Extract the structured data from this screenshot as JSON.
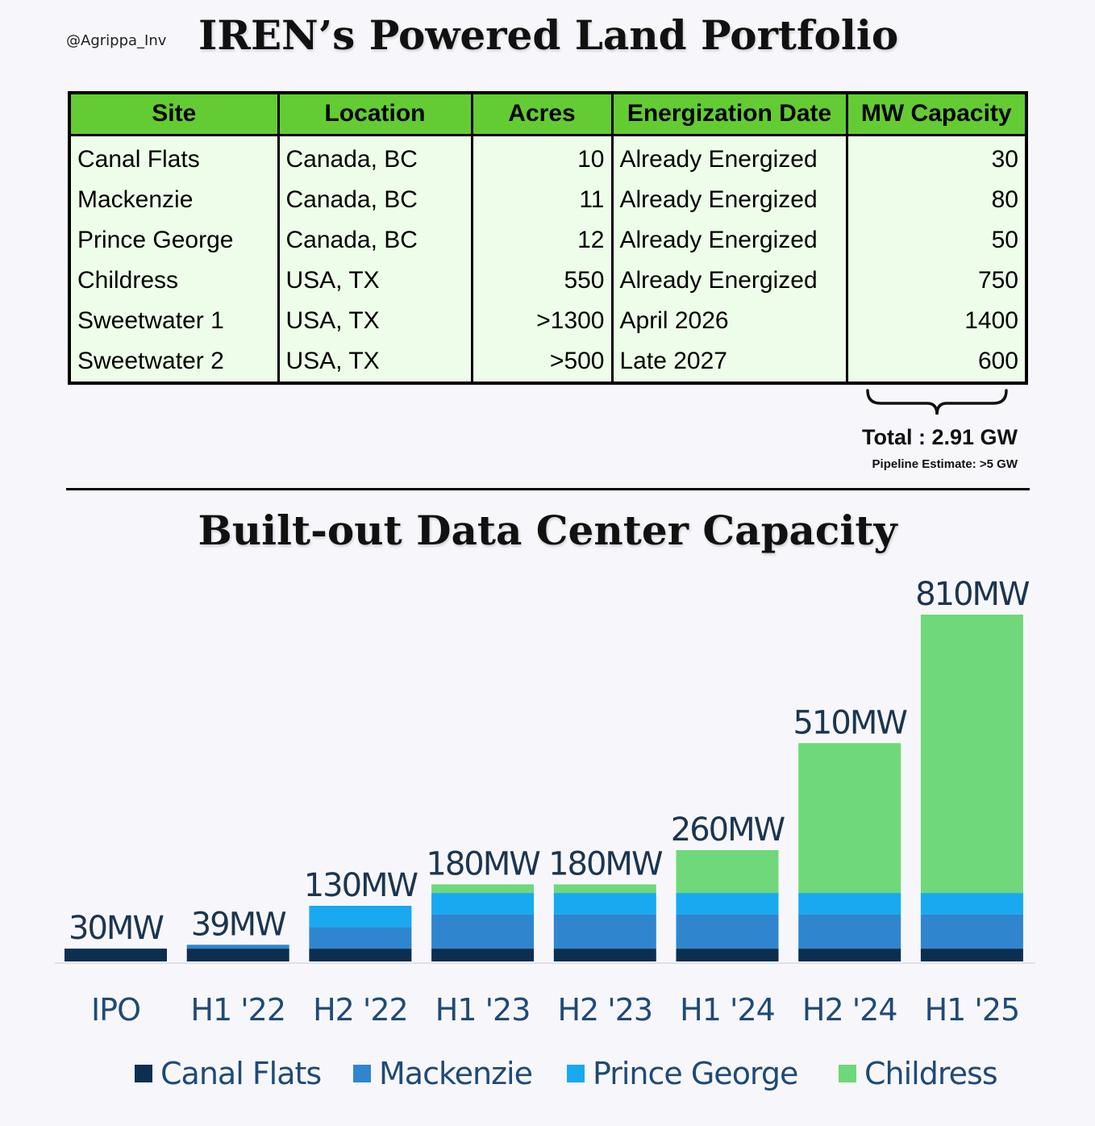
{
  "header": {
    "handle": "@Agrippa_Inv",
    "title": "IREN’s Powered Land Portfolio"
  },
  "table": {
    "columns": [
      "Site",
      "Location",
      "Acres",
      "Energization Date",
      "MW Capacity"
    ],
    "rows": [
      [
        "Canal Flats",
        "Canada, BC",
        "10",
        "Already Energized",
        "30"
      ],
      [
        "Mackenzie",
        "Canada, BC",
        "11",
        "Already Energized",
        "80"
      ],
      [
        "Prince George",
        "Canada, BC",
        "12",
        "Already Energized",
        "50"
      ],
      [
        "Childress",
        "USA, TX",
        "550",
        "Already Energized",
        "750"
      ],
      [
        "Sweetwater 1",
        "USA, TX",
        ">1300",
        "April 2026",
        "1400"
      ],
      [
        "Sweetwater 2",
        "USA, TX",
        ">500",
        "Late 2027",
        "600"
      ]
    ]
  },
  "summary": {
    "total": "Total : 2.91 GW",
    "pipeline": "Pipeline Estimate: >5 GW"
  },
  "chart_data": {
    "type": "bar",
    "stacked": true,
    "title": "Built-out Data Center Capacity",
    "categories": [
      "IPO",
      "H1 '22",
      "H2 '22",
      "H1 '23",
      "H2 '23",
      "H1 '24",
      "H2 '24",
      "H1 '25"
    ],
    "totals": [
      30,
      39,
      130,
      180,
      180,
      260,
      510,
      810
    ],
    "total_labels": [
      "30MW",
      "39MW",
      "130MW",
      "180MW",
      "180MW",
      "260MW",
      "510MW",
      "810MW"
    ],
    "series": [
      {
        "name": "Canal Flats",
        "color": "#0d2f4f",
        "values": [
          30,
          30,
          30,
          30,
          30,
          30,
          30,
          30
        ]
      },
      {
        "name": "Mackenzie",
        "color": "#2f86cf",
        "values": [
          0,
          9,
          50,
          80,
          80,
          80,
          80,
          80
        ]
      },
      {
        "name": "Prince George",
        "color": "#18a9f1",
        "values": [
          0,
          0,
          50,
          50,
          50,
          50,
          50,
          50
        ]
      },
      {
        "name": "Childress",
        "color": "#6fd87a",
        "values": [
          0,
          0,
          0,
          20,
          20,
          100,
          350,
          650
        ]
      }
    ],
    "xlabel": "",
    "ylabel": "",
    "ylim": [
      0,
      810
    ],
    "grid": false,
    "legend": "bottom"
  }
}
